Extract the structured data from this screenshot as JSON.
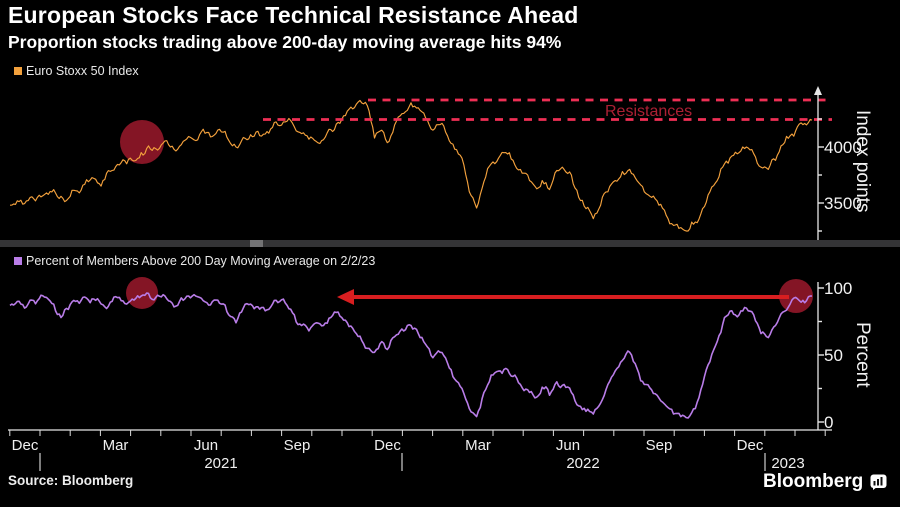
{
  "header": {
    "title": "European Stocks Face Technical Resistance Ahead",
    "subtitle": "Proportion stocks trading above 200-day moving average hits 94%"
  },
  "legends": {
    "top": "Euro Stoxx 50 Index",
    "bottom": "Percent of Members Above 200 Day Moving Average on 2/2/23"
  },
  "annotations": {
    "resistances_label": "Resistances"
  },
  "axes": {
    "top_y": {
      "title": "Index points",
      "ticks": [
        "4000",
        "3500"
      ]
    },
    "bottom_y": {
      "title": "Percent",
      "ticks": [
        "100",
        "50",
        "0"
      ]
    },
    "x": {
      "months": [
        "Dec",
        "Mar",
        "Jun",
        "Sep",
        "Dec",
        "Mar",
        "Jun",
        "Sep",
        "Dec"
      ],
      "years": [
        "2021",
        "2022",
        "2023"
      ]
    }
  },
  "footer": {
    "source": "Source: Bloomberg",
    "brand": "Bloomberg"
  },
  "colors": {
    "background": "#000000",
    "euro_stoxx_line": "#f3a13d",
    "percent_line": "#b97de8",
    "resistance_dash": "#ee2f55",
    "resistance_text": "#ab2034",
    "highlight_circle": "#8e1728",
    "arrow_red": "#d81e20",
    "axis": "#e6e6e6"
  },
  "chart_data": [
    {
      "type": "line",
      "name": "Euro Stoxx 50 Index",
      "ylabel": "Index points",
      "ylim": [
        3150,
        4500
      ],
      "yticks": [
        3500,
        4000
      ],
      "x_range": [
        "Dec 2020",
        "Feb 2023"
      ],
      "x_tick_months": [
        "Dec",
        "Mar",
        "Jun",
        "Sep",
        "Dec",
        "Mar",
        "Jun",
        "Sep",
        "Dec"
      ],
      "resistance_levels": [
        4410,
        4240
      ],
      "values": [
        3480,
        3520,
        3495,
        3555,
        3570,
        3590,
        3620,
        3560,
        3540,
        3610,
        3660,
        3705,
        3680,
        3710,
        3790,
        3840,
        3850,
        3875,
        3950,
        4010,
        3985,
        4035,
        4000,
        3980,
        4060,
        4075,
        4110,
        4130,
        4105,
        4135,
        4060,
        4000,
        4085,
        4110,
        4140,
        4115,
        4175,
        4190,
        4230,
        4180,
        4120,
        4070,
        4050,
        4065,
        4155,
        4220,
        4280,
        4340,
        4415,
        4370,
        4080,
        4150,
        4050,
        4230,
        4300,
        4395,
        4350,
        4260,
        4150,
        4200,
        4100,
        3980,
        3900,
        3600,
        3455,
        3690,
        3850,
        3900,
        3950,
        3880,
        3800,
        3750,
        3650,
        3700,
        3620,
        3790,
        3800,
        3750,
        3550,
        3450,
        3360,
        3480,
        3600,
        3700,
        3780,
        3800,
        3700,
        3600,
        3550,
        3480,
        3390,
        3300,
        3280,
        3250,
        3330,
        3450,
        3600,
        3700,
        3850,
        3920,
        3950,
        4000,
        3940,
        3820,
        3800,
        3880,
        4020,
        4100,
        4180,
        4210,
        4240
      ]
    },
    {
      "type": "line",
      "name": "Percent of Members Above 200 Day Moving Average on 2/2/23",
      "ylabel": "Percent",
      "ylim": [
        0,
        100
      ],
      "yticks": [
        0,
        50,
        100
      ],
      "x_range": [
        "Dec 2020",
        "Feb 2023"
      ],
      "latest_value": 94,
      "arrow_level": 93,
      "values": [
        87,
        90,
        85,
        91,
        92,
        93,
        88,
        78,
        84,
        90,
        93,
        89,
        92,
        86,
        90,
        93,
        88,
        91,
        94,
        96,
        93,
        95,
        90,
        87,
        92,
        94,
        93,
        89,
        91,
        88,
        80,
        74,
        85,
        88,
        86,
        83,
        88,
        90,
        87,
        80,
        72,
        68,
        74,
        72,
        78,
        82,
        76,
        70,
        64,
        55,
        52,
        60,
        56,
        65,
        68,
        72,
        66,
        58,
        48,
        52,
        44,
        32,
        25,
        10,
        4,
        22,
        35,
        38,
        40,
        34,
        28,
        24,
        18,
        26,
        20,
        30,
        28,
        22,
        12,
        8,
        6,
        14,
        28,
        38,
        46,
        52,
        40,
        28,
        24,
        18,
        12,
        6,
        4,
        3,
        10,
        28,
        45,
        60,
        78,
        83,
        80,
        85,
        80,
        66,
        63,
        72,
        82,
        88,
        92,
        89,
        94
      ]
    }
  ]
}
